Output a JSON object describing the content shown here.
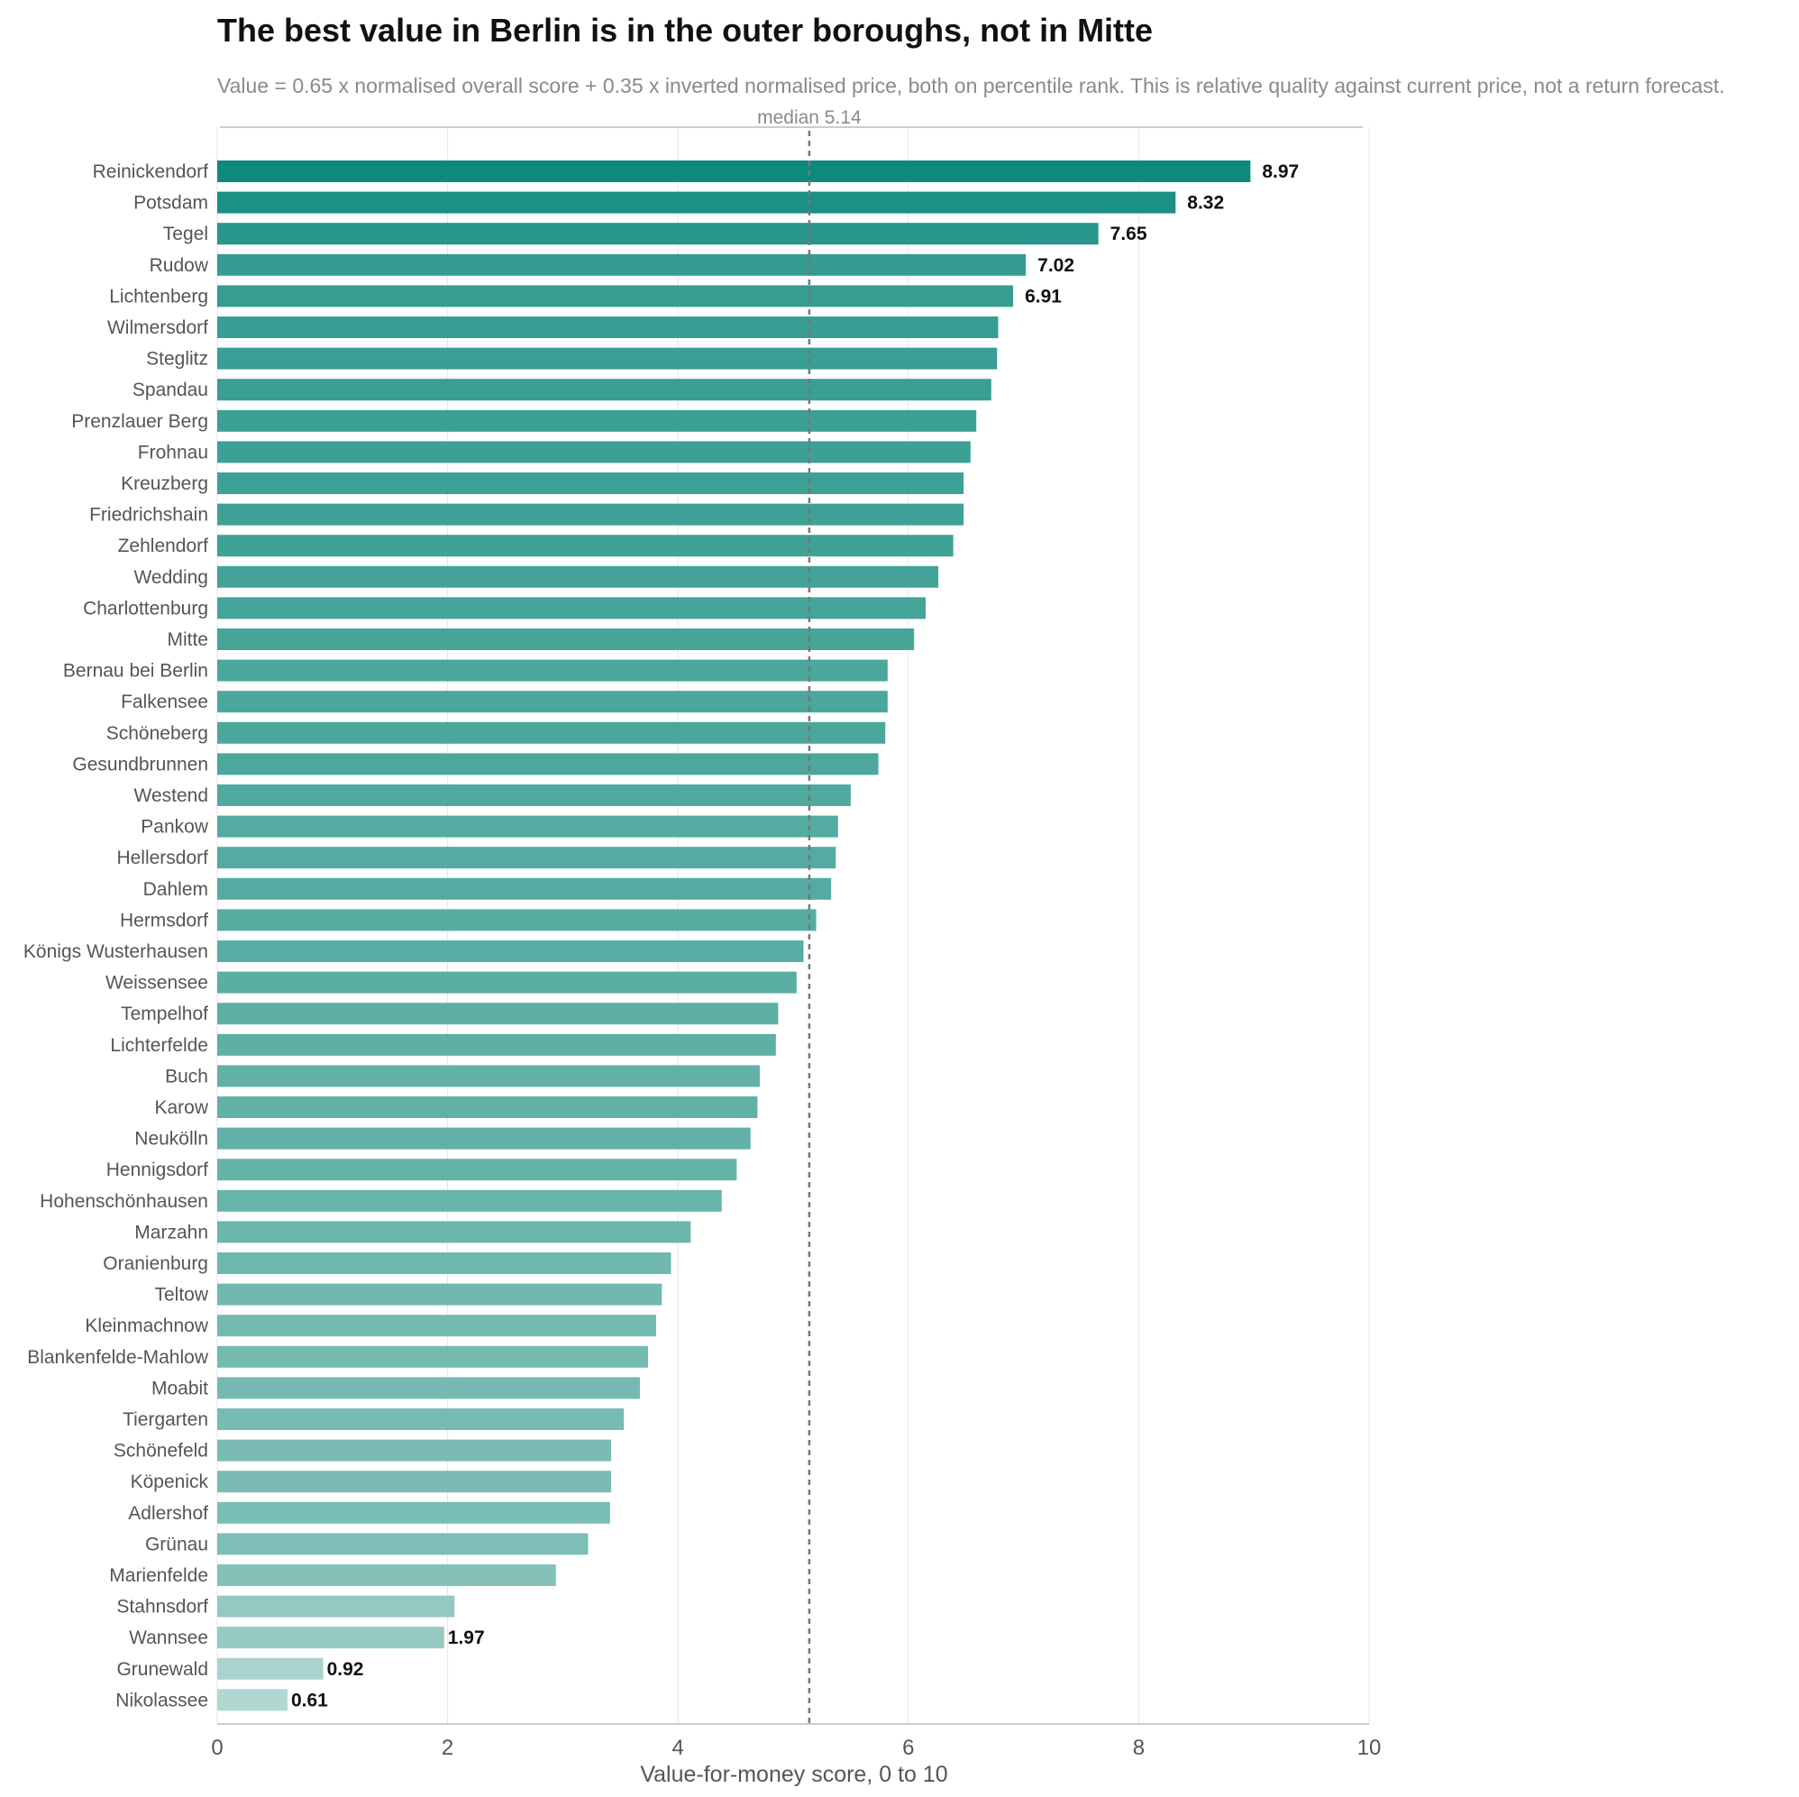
{
  "chart_data": {
    "type": "bar",
    "orientation": "horizontal",
    "title": "The best value in Berlin is in the outer boroughs, not in Mitte",
    "subtitle": "Value = 0.65 x normalised overall score + 0.35 x inverted normalised price, both on percentile rank. This is relative quality against current price, not a return forecast.",
    "xlabel": "Value-for-money score, 0 to 10",
    "ylabel": "",
    "xlim": [
      0,
      10
    ],
    "xticks": [
      0,
      2,
      4,
      6,
      8,
      10
    ],
    "grid": true,
    "median": {
      "value": 5.14,
      "label": "median 5.14"
    },
    "colors": {
      "high": "#0e8a7d",
      "low": "#b0d6d0",
      "median_line": "#777777",
      "grid": "#e6e6e6",
      "axis": "#cccccc"
    },
    "categories": [
      "Reinickendorf",
      "Potsdam",
      "Tegel",
      "Rudow",
      "Lichtenberg",
      "Wilmersdorf",
      "Steglitz",
      "Spandau",
      "Prenzlauer Berg",
      "Frohnau",
      "Kreuzberg",
      "Friedrichshain",
      "Zehlendorf",
      "Wedding",
      "Charlottenburg",
      "Mitte",
      "Bernau bei Berlin",
      "Falkensee",
      "Schöneberg",
      "Gesundbrunnen",
      "Westend",
      "Pankow",
      "Hellersdorf",
      "Dahlem",
      "Hermsdorf",
      "Königs Wusterhausen",
      "Weissensee",
      "Tempelhof",
      "Lichterfelde",
      "Buch",
      "Karow",
      "Neukölln",
      "Hennigsdorf",
      "Hohenschönhausen",
      "Marzahn",
      "Oranienburg",
      "Teltow",
      "Kleinmachnow",
      "Blankenfelde-Mahlow",
      "Moabit",
      "Tiergarten",
      "Schönefeld",
      "Köpenick",
      "Adlershof",
      "Grünau",
      "Marienfelde",
      "Stahnsdorf",
      "Wannsee",
      "Grunewald",
      "Nikolassee"
    ],
    "values": [
      8.97,
      8.32,
      7.65,
      7.02,
      6.91,
      6.78,
      6.77,
      6.72,
      6.59,
      6.54,
      6.48,
      6.48,
      6.39,
      6.26,
      6.15,
      6.05,
      5.82,
      5.82,
      5.8,
      5.74,
      5.5,
      5.39,
      5.37,
      5.33,
      5.2,
      5.09,
      5.03,
      4.87,
      4.85,
      4.71,
      4.69,
      4.63,
      4.51,
      4.38,
      4.11,
      3.94,
      3.86,
      3.81,
      3.74,
      3.67,
      3.53,
      3.42,
      3.42,
      3.41,
      3.22,
      2.94,
      2.06,
      1.97,
      0.92,
      0.61
    ],
    "data_labels": [
      "8.97",
      "8.32",
      "7.65",
      "7.02",
      "6.91",
      null,
      null,
      null,
      null,
      null,
      null,
      null,
      null,
      null,
      null,
      null,
      null,
      null,
      null,
      null,
      null,
      null,
      null,
      null,
      null,
      null,
      null,
      null,
      null,
      null,
      null,
      null,
      null,
      null,
      null,
      null,
      null,
      null,
      null,
      null,
      null,
      null,
      null,
      null,
      null,
      null,
      null,
      "1.97",
      "0.92",
      "0.61"
    ]
  }
}
